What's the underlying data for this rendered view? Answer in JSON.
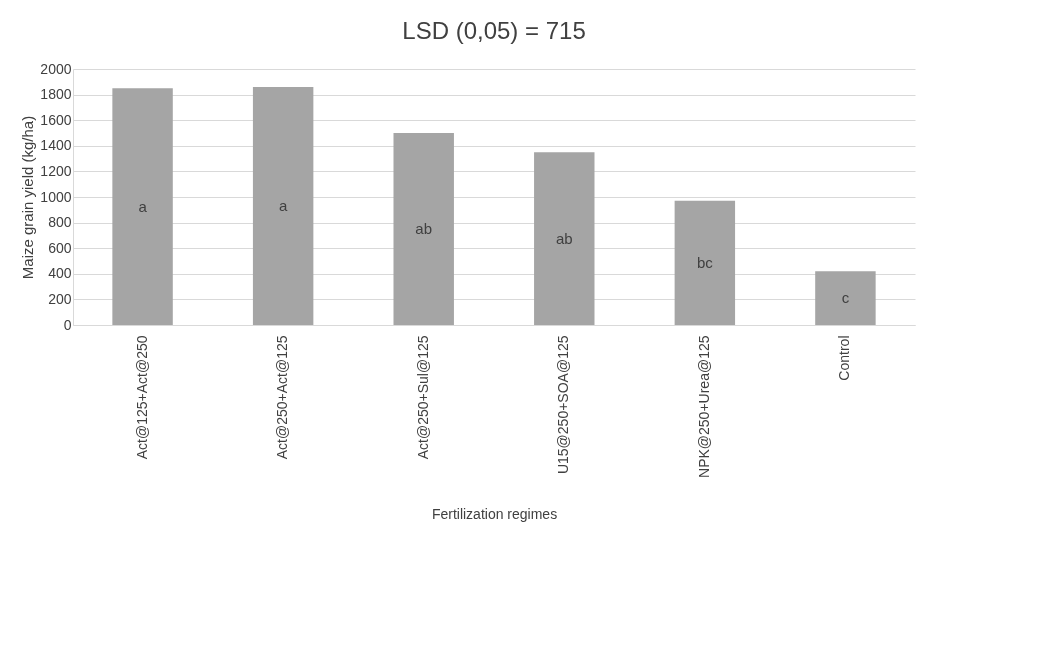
{
  "chart_data": {
    "type": "bar",
    "title": "LSD (0,05) = 715",
    "xlabel": "Fertilization regimes",
    "ylabel": "Maize grain yield (kg/ha)",
    "categories": [
      "Act@125+Act@250",
      "Act@250+Act@125",
      "Act@250+Sul@125",
      "U15@250+SOA@125",
      "NPK@250+Urea@125",
      "Control"
    ],
    "values": [
      1850,
      1860,
      1500,
      1350,
      970,
      420
    ],
    "color": "#a5a5a5",
    "ylim": [
      0,
      2000
    ],
    "yticks": [
      0,
      200,
      400,
      600,
      800,
      1000,
      1200,
      1400,
      1600,
      1800,
      2000
    ],
    "grid": "y",
    "annotations": [
      "a",
      "a",
      "ab",
      "ab",
      "bc",
      "c"
    ]
  }
}
